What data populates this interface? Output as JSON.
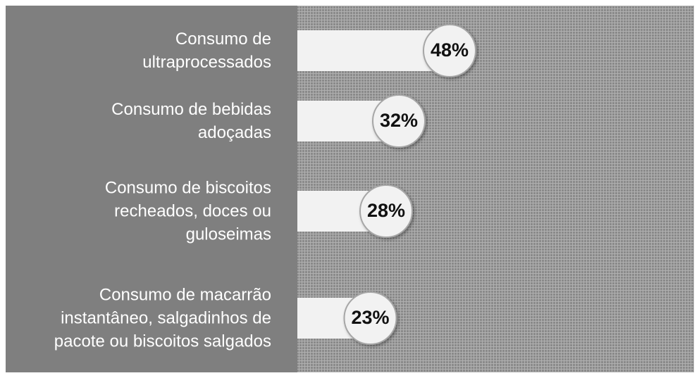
{
  "chart_data": {
    "type": "barh",
    "categories": [
      "Consumo de ultraprocessados",
      "Consumo de bebidas adoçadas",
      "Consumo de biscoitos recheados, doces ou guloseimas",
      "Consumo de macarrão instantâneo, salgadinhos de pacote ou biscoitos salgados"
    ],
    "values": [
      48,
      32,
      28,
      23
    ],
    "value_labels": [
      "48%",
      "32%",
      "28%",
      "23%"
    ],
    "color": "#f2f2f2",
    "xlim": [
      0,
      100
    ]
  }
}
